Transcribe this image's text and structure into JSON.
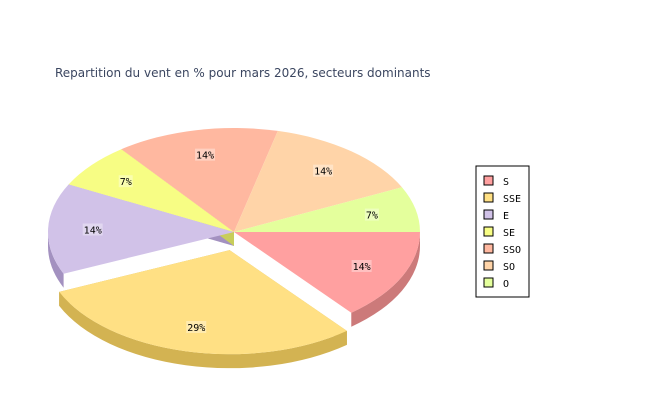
{
  "chart_data": {
    "type": "pie",
    "title": "Repartition du vent en % pour mars 2026, secteurs dominants",
    "slices": [
      {
        "label": "S",
        "value": 14,
        "display": "14%",
        "color": "#ffa0a0",
        "side": "#cc7a7a",
        "exploded": false
      },
      {
        "label": "SSE",
        "value": 29,
        "display": "29%",
        "color": "#ffe084",
        "side": "#d3b352",
        "exploded": true
      },
      {
        "label": "E",
        "value": 14,
        "display": "14%",
        "color": "#d1c2e8",
        "side": "#a391c0",
        "exploded": false
      },
      {
        "label": "SE",
        "value": 7,
        "display": "7%",
        "color": "#f7fd84",
        "side": "#c8cd5a",
        "exploded": false
      },
      {
        "label": "SSO",
        "value": 14,
        "display": "14%",
        "color": "#ffb8a0",
        "side": "#d08e76",
        "exploded": false
      },
      {
        "label": "SO",
        "value": 14,
        "display": "14%",
        "color": "#ffd4a8",
        "side": "#d1a77c",
        "exploded": false
      },
      {
        "label": "O",
        "value": 7,
        "display": "7%",
        "color": "#e4ff9c",
        "side": "#b6cc72",
        "exploded": false
      }
    ],
    "legend_position": "right"
  }
}
